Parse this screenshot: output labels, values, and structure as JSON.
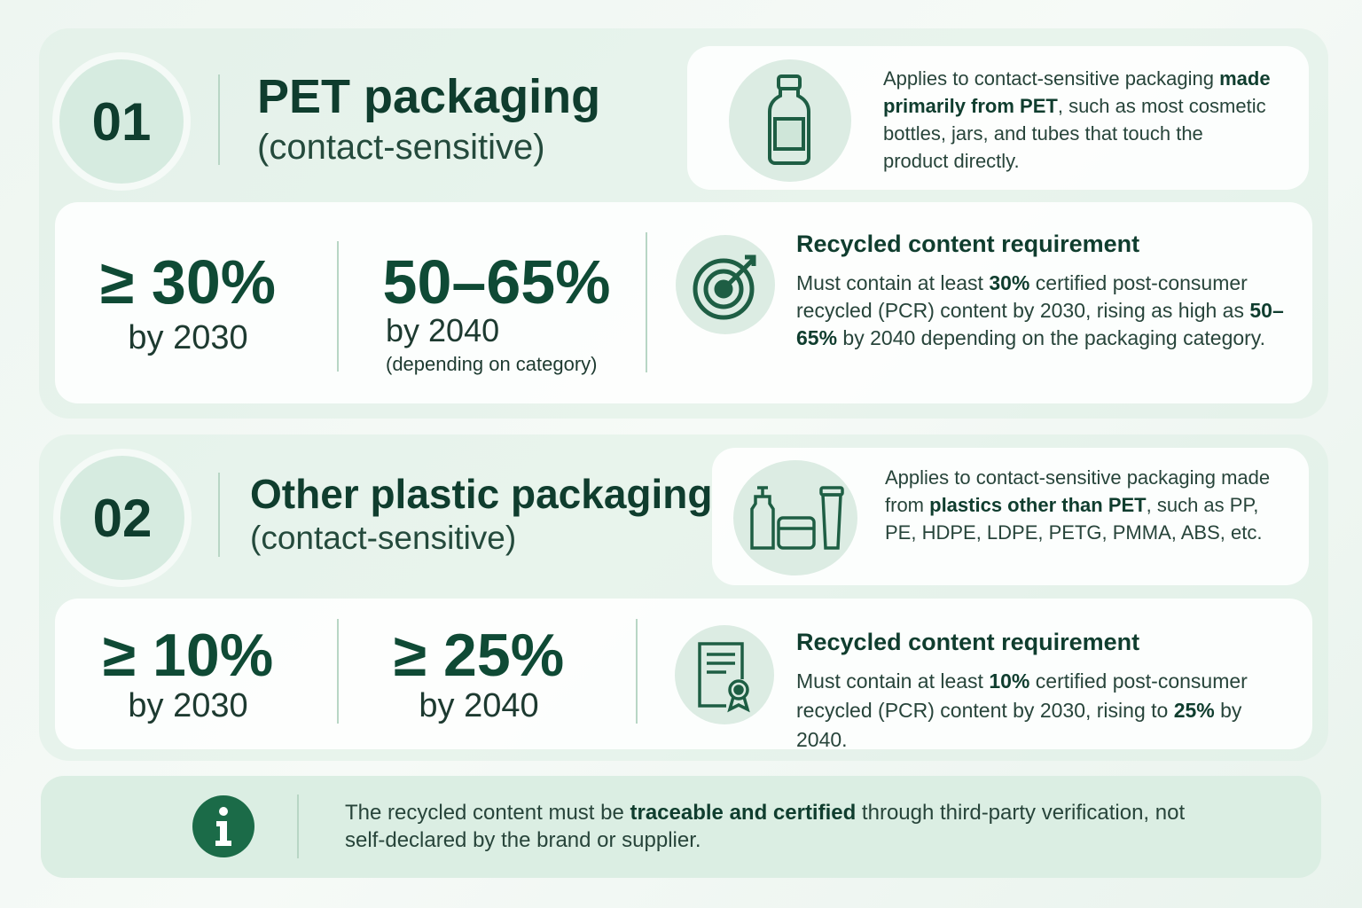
{
  "sections": [
    {
      "number": "01",
      "title": "PET packaging",
      "subtitle": "(contact-sensitive)",
      "applies": [
        "Applies to contact-sensitive packaging ",
        "made primarily from PET",
        ", such as most cosmetic bottles, jars, and tubes that touch the product directly."
      ],
      "targets": [
        {
          "value": "≥ 30%",
          "label": "by 2030"
        },
        {
          "value": "50–65%",
          "label": "by 2040",
          "note": "(depending on category)"
        }
      ],
      "requirement_title": "Recycled content requirement",
      "requirement": [
        "Must contain at least ",
        "30%",
        " certified post-consumer recycled (PCR) content by 2030, rising as high as ",
        "50–65%",
        " by 2040 depending on the packaging category."
      ]
    },
    {
      "number": "02",
      "title": "Other plastic packaging",
      "subtitle": "(contact-sensitive)",
      "applies": [
        "Applies to contact-sensitive packaging made from ",
        "plastics other than PET",
        ", such as PP, PE, HDPE, LDPE, PETG, PMMA, ABS, etc."
      ],
      "targets": [
        {
          "value": "≥ 10%",
          "label": "by 2030"
        },
        {
          "value": "≥ 25%",
          "label": "by 2040"
        }
      ],
      "requirement_title": "Recycled content requirement",
      "requirement": [
        "Must contain at least ",
        "10%",
        " certified post-consumer recycled (PCR) content by 2030, rising to ",
        "25%",
        " by 2040."
      ]
    }
  ],
  "footer": [
    "The recycled content must be ",
    "traceable and certified",
    " through third-party verification, not self-declared by the brand or supplier."
  ]
}
